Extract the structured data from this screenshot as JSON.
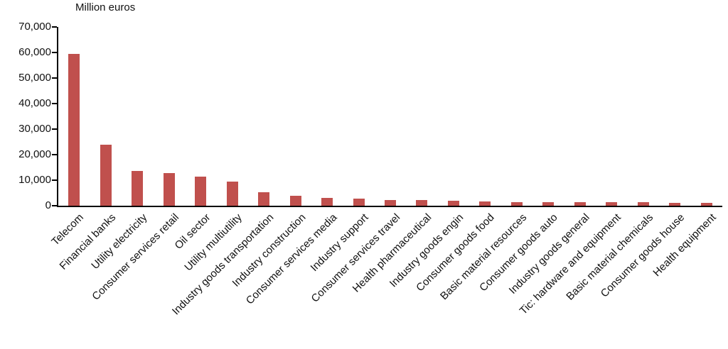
{
  "chart_data": {
    "type": "bar",
    "title": "Million euros",
    "ylabel": "Million euros",
    "xlabel": "",
    "categories": [
      "Telecom",
      "Financial banks",
      "Utility electricity",
      "Consumer services retail",
      "Oil sector",
      "Utility multiutility",
      "Industry goods transportation",
      "Industry construction",
      "Consumer services media",
      "Industry support",
      "Consumer services travel",
      "Health pharmaceutical",
      "Industry goods engin",
      "Consumer goods food",
      "Basic material resources",
      "Consumer goods auto",
      "Industry goods general",
      "Tic: hardware and equipment",
      "Basic material chemicals",
      "Consumer goods house",
      "Health equipment"
    ],
    "values": [
      59500,
      24000,
      13700,
      12900,
      11300,
      9500,
      5200,
      3900,
      3100,
      2900,
      2200,
      2100,
      2000,
      1800,
      1500,
      1500,
      1450,
      1400,
      1350,
      1150,
      1100
    ],
    "ylim": [
      0,
      70000
    ],
    "ytick_values": [
      0,
      10000,
      20000,
      30000,
      40000,
      50000,
      60000,
      70000
    ],
    "ytick_labels": [
      "0",
      "10,000",
      "20,000",
      "30,000",
      "40,000",
      "50,000",
      "60,000",
      "70,000"
    ],
    "grid": false,
    "legend_position": "none",
    "label_rotation_deg": 45,
    "bar_color": "#c0504d",
    "axis_color": "#000000"
  }
}
